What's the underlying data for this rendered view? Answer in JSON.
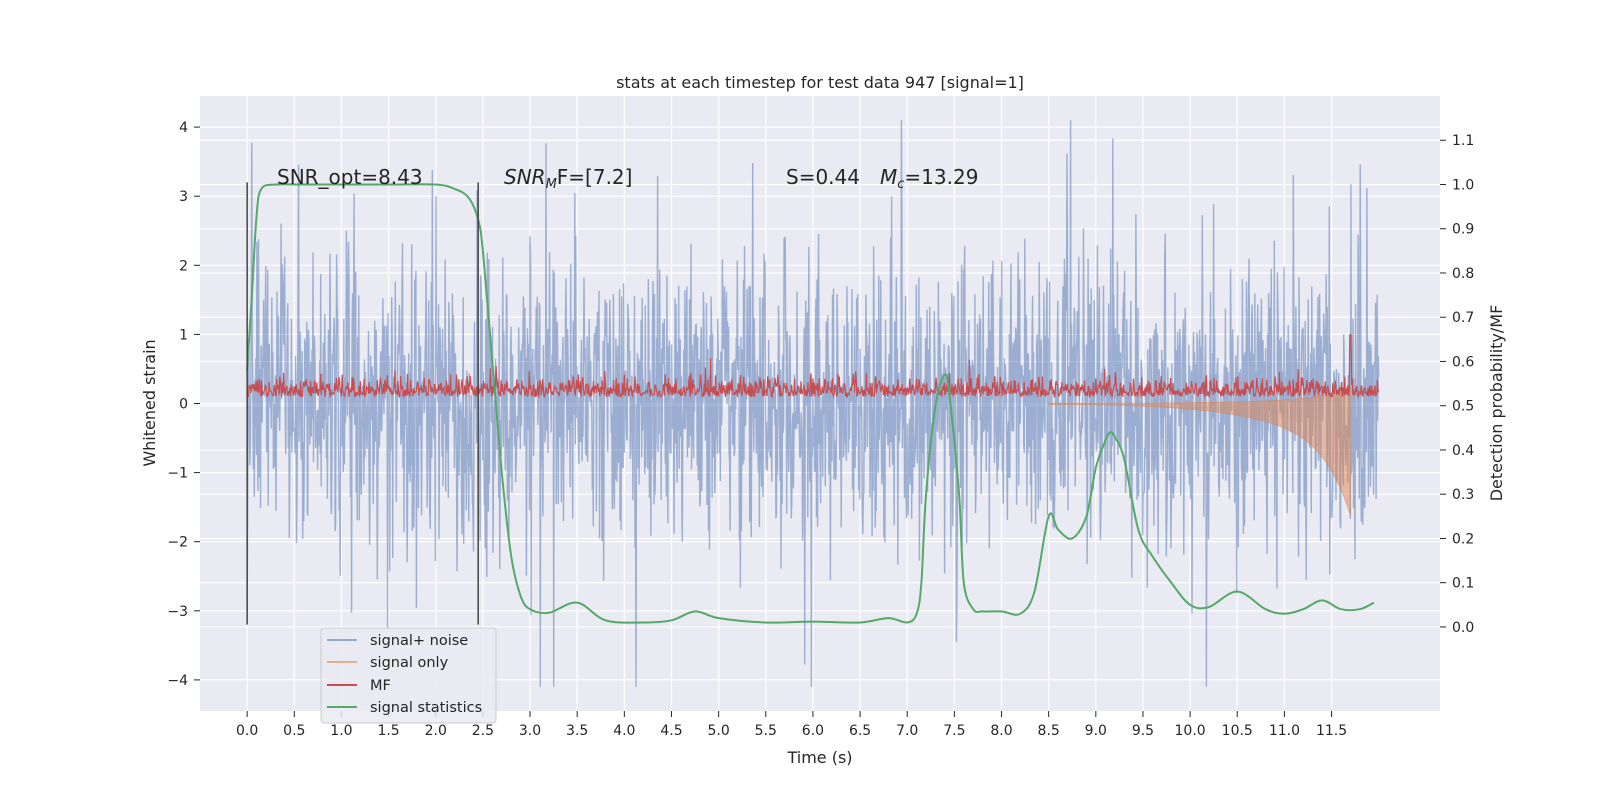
{
  "chart_data": {
    "type": "line",
    "title": "stats at each timestep for test data 947 [signal=1]",
    "xlabel": "Time (s)",
    "ylabel_left": "Whitened strain",
    "ylabel_right": "Detection probability/MF",
    "xlim": [
      -0.5,
      12.65
    ],
    "ylim_left": [
      -4.45,
      4.45
    ],
    "ylim_right": [
      -0.19,
      1.2
    ],
    "x_ticks": [
      "0.0",
      "0.5",
      "1.0",
      "1.5",
      "2.0",
      "2.5",
      "3.0",
      "3.5",
      "4.0",
      "4.5",
      "5.0",
      "5.5",
      "6.0",
      "6.5",
      "7.0",
      "7.5",
      "8.0",
      "8.5",
      "9.0",
      "9.5",
      "10.0",
      "10.5",
      "11.0",
      "11.5"
    ],
    "y_ticks_left": [
      "−4",
      "−3",
      "−2",
      "−1",
      "0",
      "1",
      "2",
      "3",
      "4"
    ],
    "y_ticks_right": [
      "0.0",
      "0.1",
      "0.2",
      "0.3",
      "0.4",
      "0.5",
      "0.6",
      "0.7",
      "0.8",
      "0.9",
      "1.0",
      "1.1"
    ],
    "grid": true,
    "legend_placement": "lower-left",
    "legend": [
      "signal+ noise",
      "signal only",
      "MF",
      "signal statistics"
    ],
    "colors": {
      "signal_noise": "#4c72b0",
      "signal_only": "#dd8452",
      "mf": "#c44e52",
      "statistics": "#55a868",
      "background": "#eaeaf2",
      "window_lines": "#444444"
    },
    "annotations": {
      "snr_opt": "SNR_opt=8.43",
      "snr_mf_prefix": "SNR",
      "snr_mf_sub": "M",
      "snr_mf_suffix": "F=[7.2]",
      "s_value": "S=0.44",
      "mc_value": "M",
      "mc_sub": "c",
      "mc_suffix": "=13.29"
    },
    "window_markers_x": [
      0.0,
      2.45
    ],
    "series": [
      {
        "name": "signal+ noise",
        "axis": "left",
        "x_range": [
          0.0,
          12.0
        ],
        "band_min": -4.1,
        "band_max": 4.1,
        "typical_peak": 3.5
      },
      {
        "name": "signal only",
        "axis": "left",
        "x_range": [
          8.5,
          11.7
        ],
        "min": -1.8,
        "max": 1.0,
        "peak_time": 11.7
      },
      {
        "name": "MF",
        "axis": "right",
        "x_range": [
          0.0,
          12.0
        ],
        "baseline": 0.52,
        "spike_time": 11.7,
        "spike_value": 0.66
      },
      {
        "name": "signal statistics",
        "axis": "right",
        "x": [
          0.0,
          0.05,
          0.1,
          0.15,
          0.3,
          0.6,
          1.0,
          1.5,
          2.0,
          2.2,
          2.35,
          2.45,
          2.5,
          2.6,
          2.7,
          2.8,
          2.9,
          3.0,
          3.2,
          3.5,
          3.8,
          4.2,
          4.5,
          4.75,
          5.0,
          5.5,
          6.0,
          6.5,
          6.8,
          7.0,
          7.1,
          7.15,
          7.2,
          7.3,
          7.4,
          7.45,
          7.55,
          7.6,
          7.7,
          7.8,
          8.0,
          8.2,
          8.35,
          8.5,
          8.6,
          8.75,
          8.9,
          9.0,
          9.1,
          9.15,
          9.2,
          9.3,
          9.45,
          9.6,
          9.8,
          10.0,
          10.2,
          10.5,
          10.8,
          11.0,
          11.2,
          11.4,
          11.6,
          11.8,
          11.95
        ],
        "y": [
          0.58,
          0.75,
          0.93,
          0.99,
          1.0,
          1.0,
          1.0,
          1.0,
          1.0,
          0.99,
          0.97,
          0.92,
          0.85,
          0.6,
          0.35,
          0.16,
          0.07,
          0.04,
          0.032,
          0.055,
          0.015,
          0.01,
          0.015,
          0.035,
          0.02,
          0.01,
          0.012,
          0.01,
          0.02,
          0.01,
          0.03,
          0.1,
          0.3,
          0.5,
          0.57,
          0.52,
          0.3,
          0.1,
          0.04,
          0.035,
          0.035,
          0.03,
          0.08,
          0.25,
          0.22,
          0.2,
          0.25,
          0.36,
          0.42,
          0.44,
          0.43,
          0.38,
          0.22,
          0.16,
          0.1,
          0.05,
          0.045,
          0.08,
          0.04,
          0.03,
          0.04,
          0.06,
          0.04,
          0.04,
          0.055
        ]
      }
    ]
  }
}
